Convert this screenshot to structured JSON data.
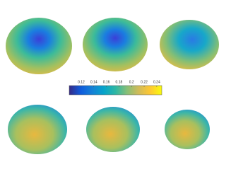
{
  "chart_data": {
    "type": "colorbar",
    "colormap": [
      "#352a87",
      "#0f5cdd",
      "#1481d6",
      "#06a4ca",
      "#2eb7a4",
      "#87bf77",
      "#d1bb59",
      "#fec832",
      "#f9fb0e"
    ],
    "xlim": [
      0.101,
      0.248
    ],
    "xticks": [
      0.12,
      0.14,
      0.16,
      0.18,
      0.2,
      0.22,
      0.24
    ]
  }
}
